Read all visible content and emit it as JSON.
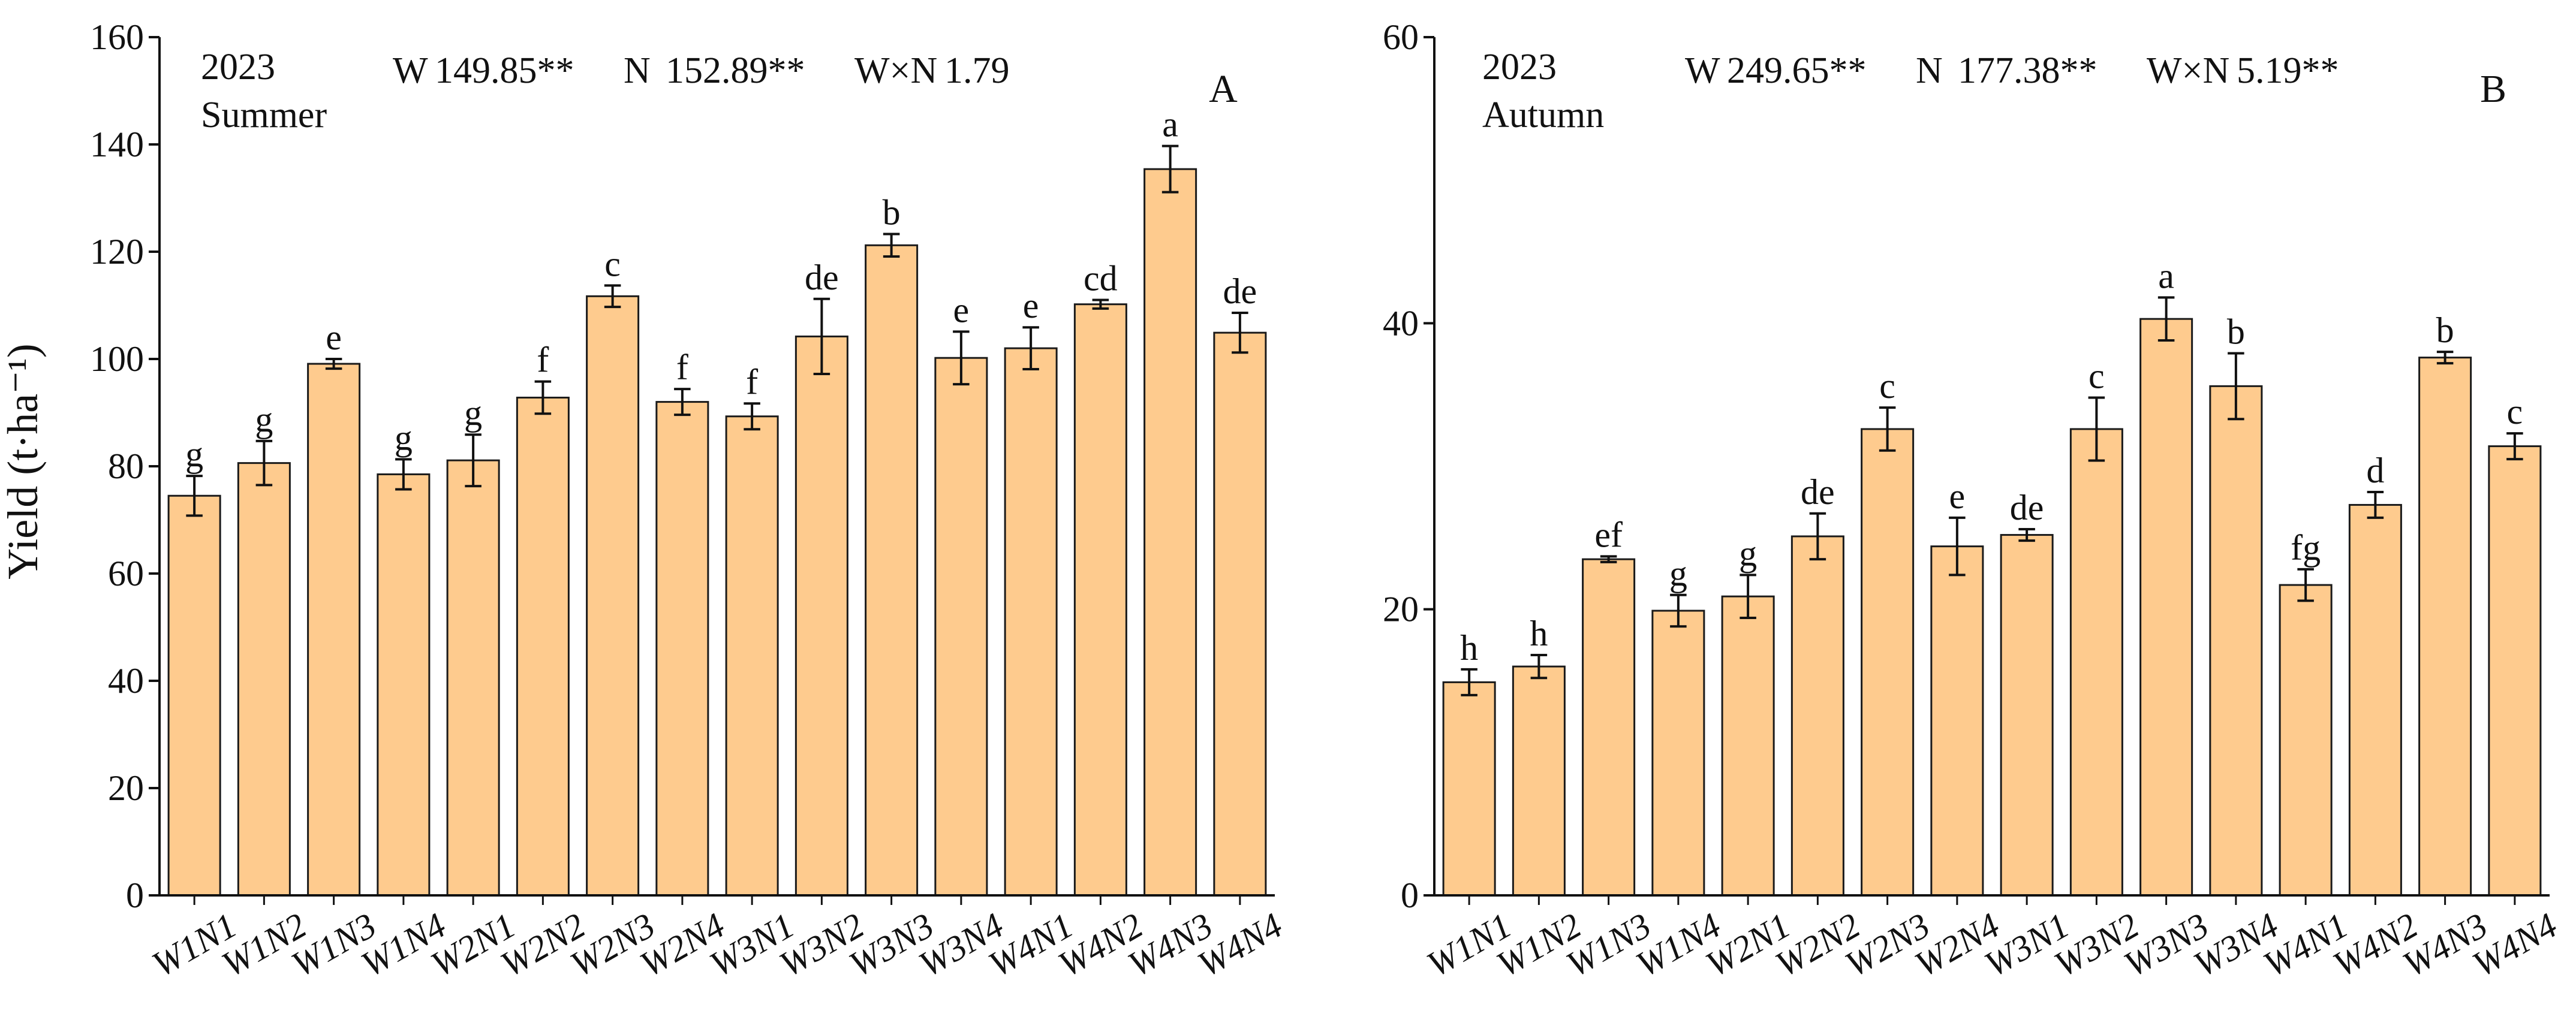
{
  "figure": {
    "y_axis_label": "Yield (t·ha⁻¹)",
    "bar_fill": "#FECB8E",
    "bar_stroke": "#1a1a1a"
  },
  "chart_data": [
    {
      "type": "bar",
      "panel_letter": "A",
      "year": "2023",
      "season": "Summer",
      "stats": [
        {
          "label": "W",
          "value": "149.85**"
        },
        {
          "label": "N",
          "value": "152.89**"
        },
        {
          "label": "W×N",
          "value": "1.79"
        }
      ],
      "ylabel": "Yield (t·ha⁻¹)",
      "ylim": [
        0,
        160
      ],
      "yticks": [
        0,
        20,
        40,
        60,
        80,
        100,
        120,
        140,
        160
      ],
      "categories": [
        "W1N1",
        "W1N2",
        "W1N3",
        "W1N4",
        "W2N1",
        "W2N2",
        "W2N3",
        "W2N4",
        "W3N1",
        "W3N2",
        "W3N3",
        "W3N4",
        "W4N1",
        "W4N2",
        "W4N3",
        "W4N4"
      ],
      "values": [
        74.5,
        80.6,
        99.1,
        78.5,
        81.1,
        92.8,
        111.7,
        92.0,
        89.3,
        104.2,
        121.2,
        100.2,
        102.0,
        110.2,
        135.4,
        104.9
      ],
      "errors": [
        3.7,
        4.1,
        0.9,
        2.8,
        4.8,
        3.0,
        2.0,
        2.4,
        2.4,
        7.0,
        2.1,
        4.9,
        3.9,
        0.8,
        4.3,
        3.7
      ],
      "letters": [
        "g",
        "g",
        "e",
        "g",
        "g",
        "f",
        "c",
        "f",
        "f",
        "de",
        "b",
        "e",
        "e",
        "cd",
        "a",
        "de"
      ]
    },
    {
      "type": "bar",
      "panel_letter": "B",
      "year": "2023",
      "season": "Autumn",
      "stats": [
        {
          "label": "W",
          "value": "249.65**"
        },
        {
          "label": "N",
          "value": "177.38**"
        },
        {
          "label": "W×N",
          "value": "5.19**"
        }
      ],
      "ylabel": "",
      "ylim": [
        0,
        60
      ],
      "yticks": [
        0,
        20,
        40,
        60
      ],
      "categories": [
        "W1N1",
        "W1N2",
        "W1N3",
        "W1N4",
        "W2N1",
        "W2N2",
        "W2N3",
        "W2N4",
        "W3N1",
        "W3N2",
        "W3N3",
        "W3N4",
        "W4N1",
        "W4N2",
        "W4N3",
        "W4N4"
      ],
      "values": [
        14.9,
        16.0,
        23.5,
        19.9,
        20.9,
        25.1,
        32.6,
        24.4,
        25.2,
        32.6,
        40.3,
        35.6,
        21.7,
        27.3,
        37.6,
        31.4
      ],
      "errors": [
        0.9,
        0.8,
        0.2,
        1.1,
        1.5,
        1.6,
        1.5,
        2.0,
        0.4,
        2.2,
        1.5,
        2.3,
        1.1,
        0.9,
        0.4,
        0.9
      ],
      "letters": [
        "h",
        "h",
        "ef",
        "g",
        "g",
        "de",
        "c",
        "e",
        "de",
        "c",
        "a",
        "b",
        "fg",
        "d",
        "b",
        "c"
      ]
    }
  ]
}
